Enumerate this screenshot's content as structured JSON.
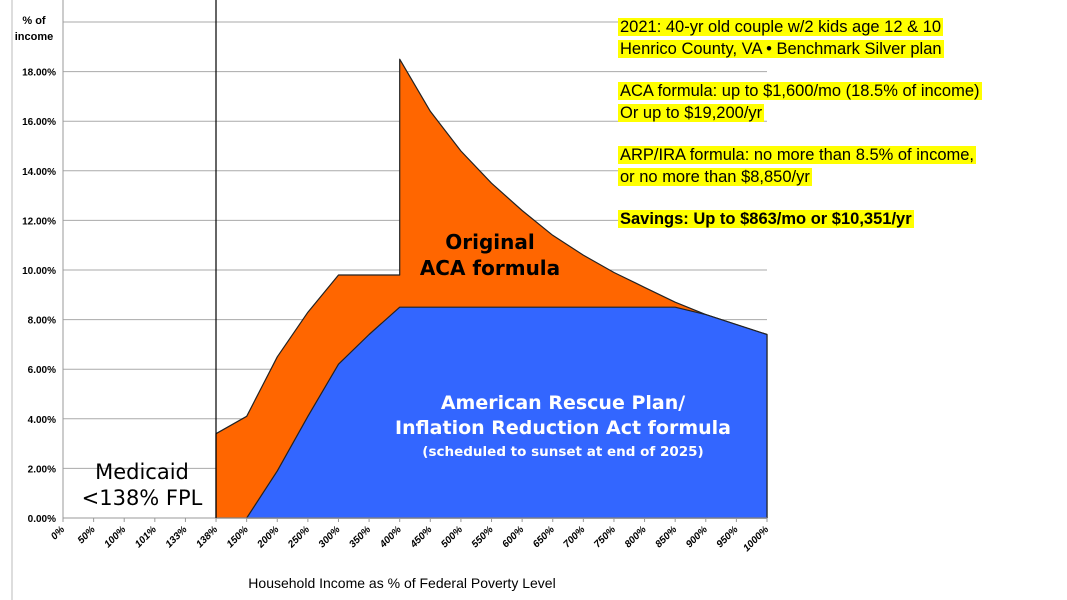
{
  "chart_data": {
    "type": "area",
    "xlabel": "Household Income as % of Federal Poverty Level",
    "ylabel": "% of income",
    "categories": [
      "0%",
      "50%",
      "100%",
      "101%",
      "133%",
      "138%",
      "150%",
      "200%",
      "250%",
      "300%",
      "350%",
      "400%",
      "450%",
      "500%",
      "550%",
      "600%",
      "650%",
      "700%",
      "750%",
      "800%",
      "850%",
      "900%",
      "950%",
      "1000%"
    ],
    "yticks": [
      "0.00%",
      "2.00%",
      "4.00%",
      "6.00%",
      "8.00%",
      "10.00%",
      "12.00%",
      "14.00%",
      "16.00%",
      "18.00%"
    ],
    "ylim": [
      0,
      20
    ],
    "grid": true,
    "medicaid_cutoff_category": "138%",
    "series": [
      {
        "name": "Original ACA formula",
        "color": "#ff6600",
        "points": [
          [
            "138%",
            0
          ],
          [
            "138%",
            3.4
          ],
          [
            "150%",
            4.1
          ],
          [
            "200%",
            6.5
          ],
          [
            "250%",
            8.3
          ],
          [
            "300%",
            9.8
          ],
          [
            "350%",
            9.8
          ],
          [
            "400%",
            9.8
          ],
          [
            "400%",
            18.5
          ],
          [
            "450%",
            16.4
          ],
          [
            "500%",
            14.8
          ],
          [
            "550%",
            13.5
          ],
          [
            "600%",
            12.4
          ],
          [
            "650%",
            11.4
          ],
          [
            "700%",
            10.6
          ],
          [
            "750%",
            9.9
          ],
          [
            "800%",
            9.3
          ],
          [
            "850%",
            8.7
          ],
          [
            "900%",
            8.2
          ],
          [
            "950%",
            7.8
          ],
          [
            "1000%",
            7.4
          ],
          [
            "1000%",
            0
          ]
        ]
      },
      {
        "name": "American Rescue Plan/ Inflation Reduction Act formula",
        "color": "#3366ff",
        "points": [
          [
            "150%",
            0
          ],
          [
            "200%",
            1.9
          ],
          [
            "250%",
            4.1
          ],
          [
            "300%",
            6.2
          ],
          [
            "350%",
            7.4
          ],
          [
            "400%",
            8.5
          ],
          [
            "450%",
            8.5
          ],
          [
            "500%",
            8.5
          ],
          [
            "550%",
            8.5
          ],
          [
            "600%",
            8.5
          ],
          [
            "650%",
            8.5
          ],
          [
            "700%",
            8.5
          ],
          [
            "750%",
            8.5
          ],
          [
            "800%",
            8.5
          ],
          [
            "850%",
            8.5
          ],
          [
            "900%",
            8.2
          ],
          [
            "950%",
            7.8
          ],
          [
            "1000%",
            7.4
          ],
          [
            "1000%",
            0
          ]
        ]
      }
    ],
    "annotations": {
      "aca_line1": "Original",
      "aca_line2": "ACA formula",
      "arp_line1": "American Rescue Plan/",
      "arp_line2": "Inflation Reduction Act formula",
      "arp_line3": "(scheduled to sunset at end of 2025)",
      "medicaid_line1": "Medicaid",
      "medicaid_line2": "<138% FPL"
    }
  },
  "notes": {
    "line1": "2021: 40-yr old couple w/2 kids age 12 & 10",
    "line2": "Henrico County, VA • Benchmark Silver plan",
    "line3": "ACA formula: up to $1,600/mo (18.5% of income)",
    "line4": "Or up to $19,200/yr",
    "line5": "ARP/IRA formula: no more than 8.5% of income,",
    "line6": "or no more than $8,850/yr",
    "line7": "Savings: Up to $863/mo or $10,351/yr",
    "highlight_color": "#ffff00"
  }
}
